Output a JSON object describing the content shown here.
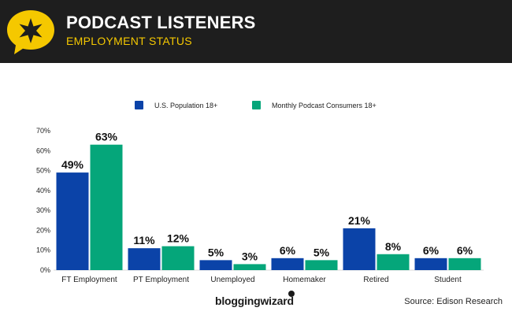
{
  "header": {
    "title": "PODCAST LISTENERS",
    "subtitle": "EMPLOYMENT STATUS",
    "logo_icon": "star-speech-bubble-icon"
  },
  "colors": {
    "header_bg": "#1e1e1e",
    "accent_yellow": "#f5c800",
    "series_us": "#0b43a8",
    "series_podcast": "#05a67a"
  },
  "chart_data": {
    "type": "bar",
    "title": "PODCAST LISTENERS",
    "subtitle": "EMPLOYMENT STATUS",
    "categories": [
      "FT Employment",
      "PT Employment",
      "Unemployed",
      "Homemaker",
      "Retired",
      "Student"
    ],
    "series": [
      {
        "name": "U.S. Population 18+",
        "values": [
          49,
          11,
          5,
          6,
          21,
          6
        ],
        "labels": [
          "49%",
          "11%",
          "5%",
          "6%",
          "21%",
          "6%"
        ],
        "color": "#0b43a8"
      },
      {
        "name": "Monthly Podcast Consumers 18+",
        "values": [
          63,
          12,
          3,
          5,
          8,
          6
        ],
        "labels": [
          "63%",
          "12%",
          "3%",
          "5%",
          "8%",
          "6%"
        ],
        "color": "#05a67a"
      }
    ],
    "yticks": [
      "0%",
      "10%",
      "20%",
      "30%",
      "40%",
      "50%",
      "60%",
      "70%"
    ],
    "ylim": [
      0,
      70
    ],
    "legend_position": "top-center",
    "grid": false
  },
  "footer": {
    "brand": "bloggingwizard",
    "source": "Source: Edison Research"
  }
}
